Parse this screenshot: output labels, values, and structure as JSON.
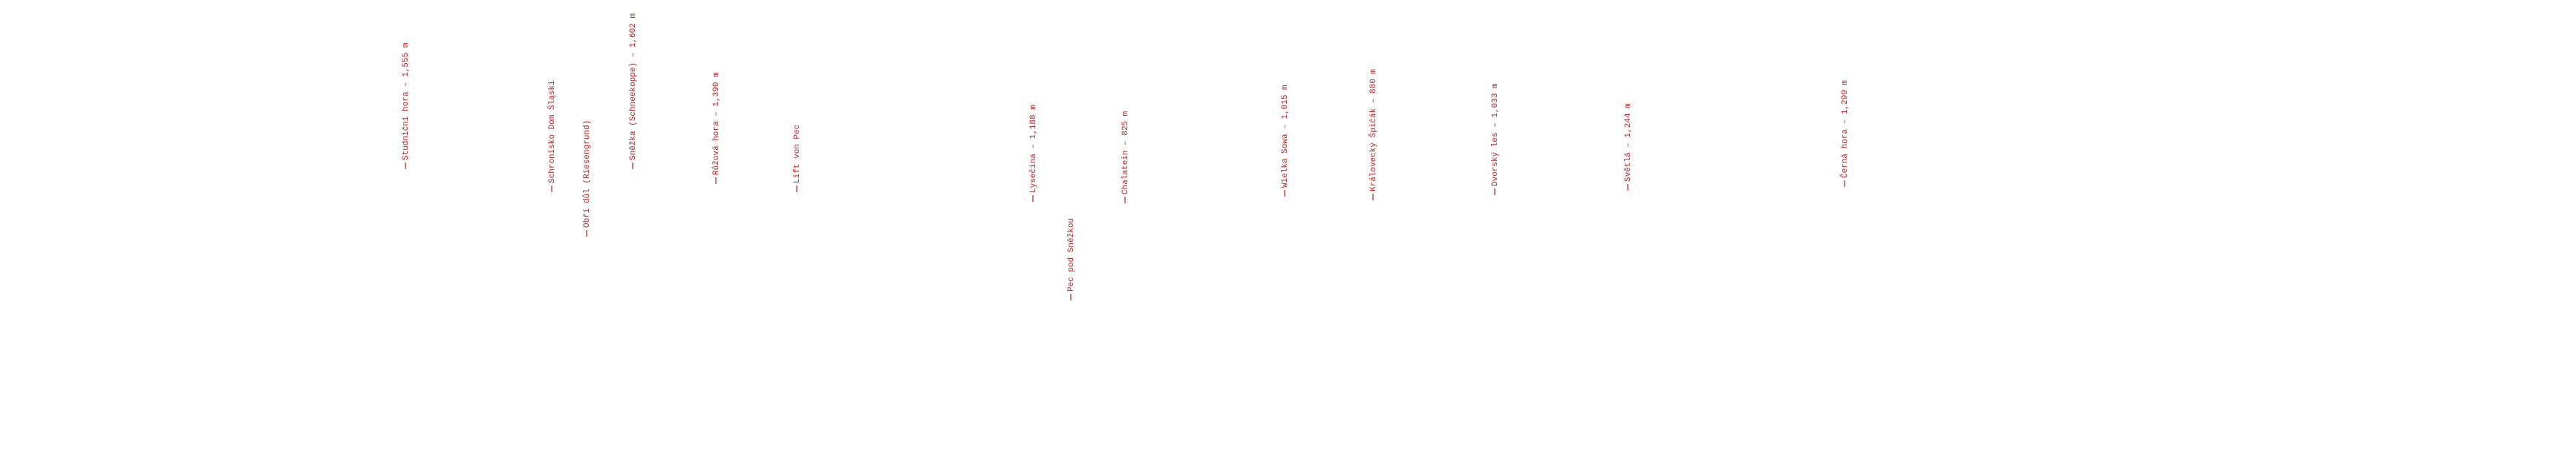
{
  "labels": [
    "Studniční hora – 1,555 m",
    "Schronisko Dom Śląski",
    "Obří důl (Riesengrund)",
    "Sněžka (Schneekoppe) – 1,602 m",
    "Růžová hora – 1,390 m",
    "Lift von Pec",
    "Lysečina – 1,188 m",
    "Pec pod Sněžkou",
    "Chalatein – 825 m",
    "Wielka Sowa – 1,015 m",
    "Královecký Špičák – 880 m",
    "Dvorský les – 1,033 m",
    "Světlá – 1,244 m",
    "Černá hora – 1,299 m"
  ]
}
